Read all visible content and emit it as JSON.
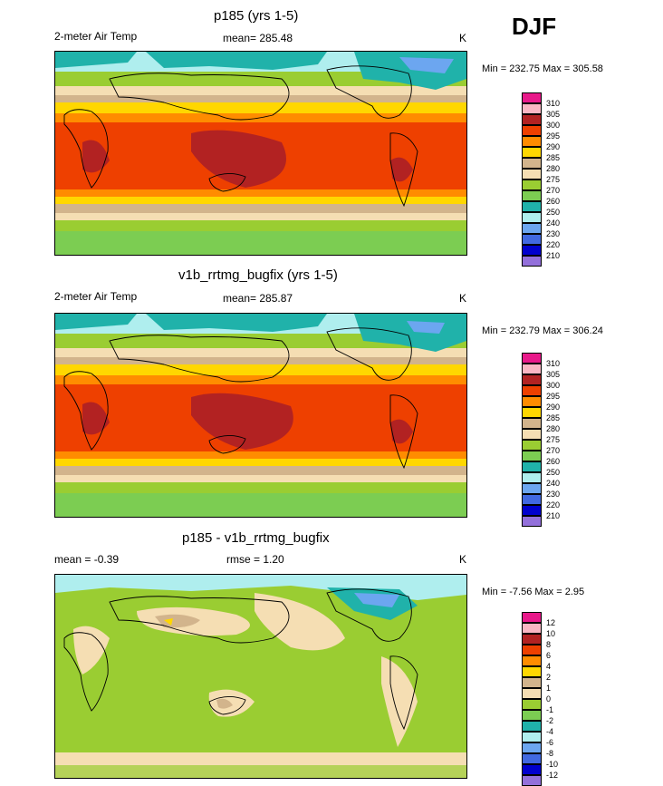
{
  "season": "DJF",
  "panels": [
    {
      "title": "p185 (yrs 1-5)",
      "left": "2-meter Air Temp",
      "center": "mean= 285.48",
      "right": "K",
      "minmax": "Min = 232.75 Max = 305.58"
    },
    {
      "title": "v1b_rrtmg_bugfix (yrs 1-5)",
      "left": "2-meter Air Temp",
      "center": "mean= 285.87",
      "right": "K",
      "minmax": "Min = 232.79 Max = 306.24"
    },
    {
      "title": "p185 - v1b_rrtmg_bugfix",
      "left": "mean =  -0.39",
      "center": "rmse =   1.20",
      "right": "K",
      "minmax": "Min =  -7.56 Max =   2.95"
    }
  ],
  "temp_levels": [
    "310",
    "305",
    "300",
    "295",
    "290",
    "285",
    "280",
    "275",
    "270",
    "260",
    "250",
    "240",
    "230",
    "220",
    "210"
  ],
  "diff_levels": [
    "12",
    "10",
    "8",
    "6",
    "4",
    "2",
    "1",
    "0",
    "-1",
    "-2",
    "-4",
    "-6",
    "-8",
    "-10",
    "-12"
  ],
  "colors": {
    "temp_fill": [
      "#e8198a",
      "#f9b6c3",
      "#b22222",
      "#ee4000",
      "#ff8c00",
      "#ffd700",
      "#d2b48c",
      "#f5deb3",
      "#9acd32",
      "#7ccd52",
      "#20b2aa",
      "#afeeee",
      "#6ca6f0",
      "#4169e1",
      "#0000cd",
      "#9370db"
    ],
    "diff_fill": [
      "#e8198a",
      "#f9b6c3",
      "#b22222",
      "#ee4000",
      "#ff8c00",
      "#ffd700",
      "#d2b48c",
      "#f5deb3",
      "#9acd32",
      "#7ccd52",
      "#20b2aa",
      "#afeeee",
      "#6ca6f0",
      "#4169e1",
      "#0000cd",
      "#9370db"
    ]
  }
}
